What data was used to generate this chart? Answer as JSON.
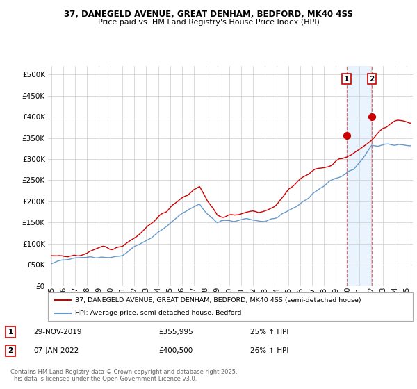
{
  "title_line1": "37, DANEGELD AVENUE, GREAT DENHAM, BEDFORD, MK40 4SS",
  "title_line2": "Price paid vs. HM Land Registry's House Price Index (HPI)",
  "legend_label1": "37, DANEGELD AVENUE, GREAT DENHAM, BEDFORD, MK40 4SS (semi-detached house)",
  "legend_label2": "HPI: Average price, semi-detached house, Bedford",
  "annotation1_label": "1",
  "annotation1_date": "29-NOV-2019",
  "annotation1_price": "£355,995",
  "annotation1_hpi": "25% ↑ HPI",
  "annotation2_label": "2",
  "annotation2_date": "07-JAN-2022",
  "annotation2_price": "£400,500",
  "annotation2_hpi": "26% ↑ HPI",
  "footer": "Contains HM Land Registry data © Crown copyright and database right 2025.\nThis data is licensed under the Open Government Licence v3.0.",
  "red_color": "#cc0000",
  "blue_color": "#6699cc",
  "blue_fill_color": "#ddeeff",
  "vline_color": "#cc6666",
  "annotation_box_color": "#cc0000",
  "ylim": [
    0,
    520000
  ],
  "yticks": [
    0,
    50000,
    100000,
    150000,
    200000,
    250000,
    300000,
    350000,
    400000,
    450000,
    500000
  ],
  "xlim_start": 1994.7,
  "xlim_end": 2025.5,
  "marker1_x": 2019.91,
  "marker1_y": 355995,
  "marker2_x": 2022.03,
  "marker2_y": 400500,
  "vline1_x": 2019.91,
  "vline2_x": 2022.03,
  "xtick_labels": [
    "95",
    "96",
    "97",
    "98",
    "99",
    "00",
    "01",
    "02",
    "03",
    "04",
    "05",
    "06",
    "07",
    "08",
    "09",
    "10",
    "11",
    "12",
    "13",
    "14",
    "15",
    "16",
    "17",
    "18",
    "19",
    "20",
    "21",
    "22",
    "23",
    "24",
    "25"
  ],
  "xtick_values": [
    1995,
    1996,
    1997,
    1998,
    1999,
    2000,
    2001,
    2002,
    2003,
    2004,
    2005,
    2006,
    2007,
    2008,
    2009,
    2010,
    2011,
    2012,
    2013,
    2014,
    2015,
    2016,
    2017,
    2018,
    2019,
    2020,
    2021,
    2022,
    2023,
    2024,
    2025
  ]
}
